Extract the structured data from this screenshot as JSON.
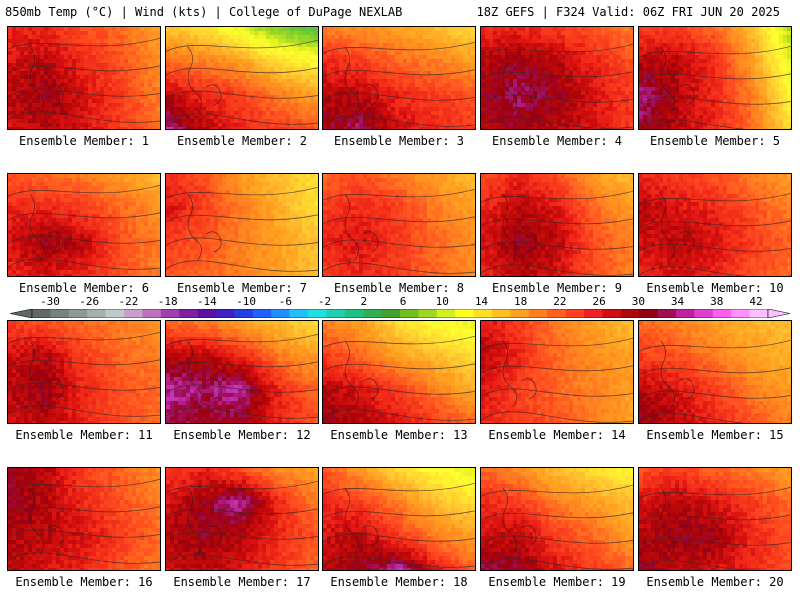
{
  "header": {
    "left": "850mb Temp (°C) | Wind (kts) | College of DuPage NEXLAB",
    "right": "18Z GEFS | F324 Valid: 06Z FRI JUN 20 2025"
  },
  "colorbar": {
    "labels": [
      "-30",
      "-26",
      "-22",
      "-18",
      "-14",
      "-10",
      "-6",
      "-2",
      "2",
      "6",
      "10",
      "14",
      "18",
      "22",
      "26",
      "30",
      "34",
      "38",
      "42"
    ],
    "colors": [
      "#606868",
      "#788080",
      "#909898",
      "#a8b0b0",
      "#c0c8c8",
      "#c8a0c8",
      "#c070c0",
      "#a040b0",
      "#8020a0",
      "#6010a0",
      "#4020c0",
      "#2040e0",
      "#2060ff",
      "#2090ff",
      "#20c0ff",
      "#20e0e0",
      "#20d0b0",
      "#20c080",
      "#30b050",
      "#40a030",
      "#70c020",
      "#a0d820",
      "#d0f020",
      "#ffff20",
      "#ffe020",
      "#ffc020",
      "#ffa020",
      "#ff8020",
      "#ff6020",
      "#ff4020",
      "#f02020",
      "#d01010",
      "#b00808",
      "#900010",
      "#a01050",
      "#c020a0",
      "#e040d0",
      "#ff60f0",
      "#ff90ff",
      "#ffc0ff"
    ]
  },
  "panels": [
    {
      "label": "Ensemble Member: 1",
      "field": [
        [
          28,
          28,
          26,
          25,
          22
        ],
        [
          29,
          30,
          28,
          26,
          23
        ],
        [
          30,
          31,
          29,
          27,
          24
        ],
        [
          29,
          30,
          29,
          27,
          25
        ]
      ],
      "shift": 0
    },
    {
      "label": "Ensemble Member: 2",
      "field": [
        [
          20,
          18,
          14,
          10,
          8
        ],
        [
          25,
          24,
          22,
          18,
          16
        ],
        [
          30,
          28,
          27,
          24,
          22
        ],
        [
          33,
          30,
          28,
          27,
          26
        ]
      ],
      "shift": 1
    },
    {
      "label": "Ensemble Member: 3",
      "field": [
        [
          24,
          23,
          22,
          20,
          18
        ],
        [
          28,
          27,
          25,
          24,
          22
        ],
        [
          30,
          30,
          28,
          27,
          26
        ],
        [
          31,
          32,
          29,
          28,
          27
        ]
      ],
      "shift": 2
    },
    {
      "label": "Ensemble Member: 4",
      "field": [
        [
          28,
          28,
          27,
          26,
          24
        ],
        [
          30,
          31,
          30,
          28,
          26
        ],
        [
          31,
          32,
          31,
          29,
          27
        ],
        [
          30,
          31,
          30,
          29,
          27
        ]
      ],
      "shift": 3
    },
    {
      "label": "Ensemble Member: 5",
      "field": [
        [
          27,
          27,
          25,
          20,
          12
        ],
        [
          30,
          30,
          28,
          22,
          14
        ],
        [
          33,
          30,
          28,
          24,
          16
        ],
        [
          31,
          30,
          28,
          25,
          18
        ]
      ],
      "shift": 4
    },
    {
      "label": "Ensemble Member: 6",
      "field": [
        [
          26,
          25,
          24,
          22,
          20
        ],
        [
          28,
          28,
          27,
          25,
          23
        ],
        [
          29,
          31,
          30,
          26,
          24
        ],
        [
          28,
          29,
          28,
          26,
          24
        ]
      ],
      "shift": 5
    },
    {
      "label": "Ensemble Member: 7",
      "field": [
        [
          28,
          26,
          22,
          20,
          18
        ],
        [
          29,
          27,
          24,
          21,
          18
        ],
        [
          27,
          26,
          24,
          22,
          20
        ],
        [
          26,
          25,
          24,
          22,
          20
        ]
      ],
      "shift": 6
    },
    {
      "label": "Ensemble Member: 8",
      "field": [
        [
          25,
          26,
          24,
          22,
          20
        ],
        [
          27,
          28,
          27,
          24,
          22
        ],
        [
          28,
          29,
          27,
          25,
          23
        ],
        [
          27,
          28,
          27,
          25,
          23
        ]
      ],
      "shift": 7
    },
    {
      "label": "Ensemble Member: 9",
      "field": [
        [
          26,
          28,
          26,
          22,
          20
        ],
        [
          28,
          30,
          29,
          25,
          22
        ],
        [
          29,
          31,
          30,
          26,
          24
        ],
        [
          28,
          30,
          29,
          26,
          24
        ]
      ],
      "shift": 8
    },
    {
      "label": "Ensemble Member: 10",
      "field": [
        [
          28,
          27,
          26,
          24,
          22
        ],
        [
          30,
          29,
          28,
          26,
          24
        ],
        [
          29,
          30,
          29,
          27,
          25
        ],
        [
          28,
          29,
          28,
          26,
          25
        ]
      ],
      "shift": 9
    },
    {
      "label": "Ensemble Member: 11",
      "field": [
        [
          27,
          26,
          25,
          24,
          23
        ],
        [
          29,
          30,
          27,
          25,
          24
        ],
        [
          30,
          31,
          28,
          26,
          25
        ],
        [
          29,
          30,
          28,
          26,
          25
        ]
      ],
      "shift": 10
    },
    {
      "label": "Ensemble Member: 12",
      "field": [
        [
          25,
          24,
          22,
          20,
          18
        ],
        [
          30,
          30,
          28,
          24,
          22
        ],
        [
          33,
          32,
          33,
          28,
          25
        ],
        [
          32,
          31,
          31,
          28,
          26
        ]
      ],
      "shift": 11
    },
    {
      "label": "Ensemble Member: 13",
      "field": [
        [
          24,
          22,
          18,
          16,
          14
        ],
        [
          27,
          25,
          22,
          20,
          18
        ],
        [
          30,
          29,
          27,
          24,
          21
        ],
        [
          31,
          30,
          29,
          27,
          25
        ]
      ],
      "shift": 12
    },
    {
      "label": "Ensemble Member: 14",
      "field": [
        [
          29,
          27,
          24,
          22,
          20
        ],
        [
          30,
          28,
          25,
          23,
          22
        ],
        [
          29,
          27,
          25,
          24,
          22
        ],
        [
          28,
          27,
          26,
          24,
          22
        ]
      ],
      "shift": 13
    },
    {
      "label": "Ensemble Member: 15",
      "field": [
        [
          25,
          24,
          22,
          21,
          20
        ],
        [
          27,
          26,
          24,
          22,
          21
        ],
        [
          30,
          29,
          27,
          24,
          22
        ],
        [
          31,
          30,
          28,
          26,
          24
        ]
      ],
      "shift": 14
    },
    {
      "label": "Ensemble Member: 16",
      "field": [
        [
          31,
          30,
          27,
          25,
          23
        ],
        [
          31,
          30,
          28,
          26,
          24
        ],
        [
          30,
          30,
          29,
          27,
          25
        ],
        [
          30,
          29,
          28,
          26,
          24
        ]
      ],
      "shift": 15
    },
    {
      "label": "Ensemble Member: 17",
      "field": [
        [
          27,
          28,
          26,
          23,
          22
        ],
        [
          29,
          31,
          33,
          28,
          24
        ],
        [
          30,
          31,
          30,
          28,
          26
        ],
        [
          29,
          30,
          29,
          27,
          25
        ]
      ],
      "shift": 16
    },
    {
      "label": "Ensemble Member: 18",
      "field": [
        [
          26,
          22,
          18,
          16,
          14
        ],
        [
          28,
          27,
          24,
          20,
          18
        ],
        [
          29,
          30,
          27,
          24,
          22
        ],
        [
          30,
          31,
          33,
          29,
          25
        ]
      ],
      "shift": 17
    },
    {
      "label": "Ensemble Member: 19",
      "field": [
        [
          25,
          23,
          20,
          18,
          16
        ],
        [
          28,
          27,
          24,
          22,
          20
        ],
        [
          29,
          30,
          27,
          25,
          22
        ],
        [
          32,
          31,
          29,
          27,
          25
        ]
      ],
      "shift": 18
    },
    {
      "label": "Ensemble Member: 20",
      "field": [
        [
          26,
          27,
          25,
          24,
          22
        ],
        [
          29,
          30,
          29,
          27,
          25
        ],
        [
          30,
          31,
          31,
          28,
          26
        ],
        [
          31,
          30,
          29,
          28,
          26
        ]
      ],
      "shift": 19
    }
  ]
}
